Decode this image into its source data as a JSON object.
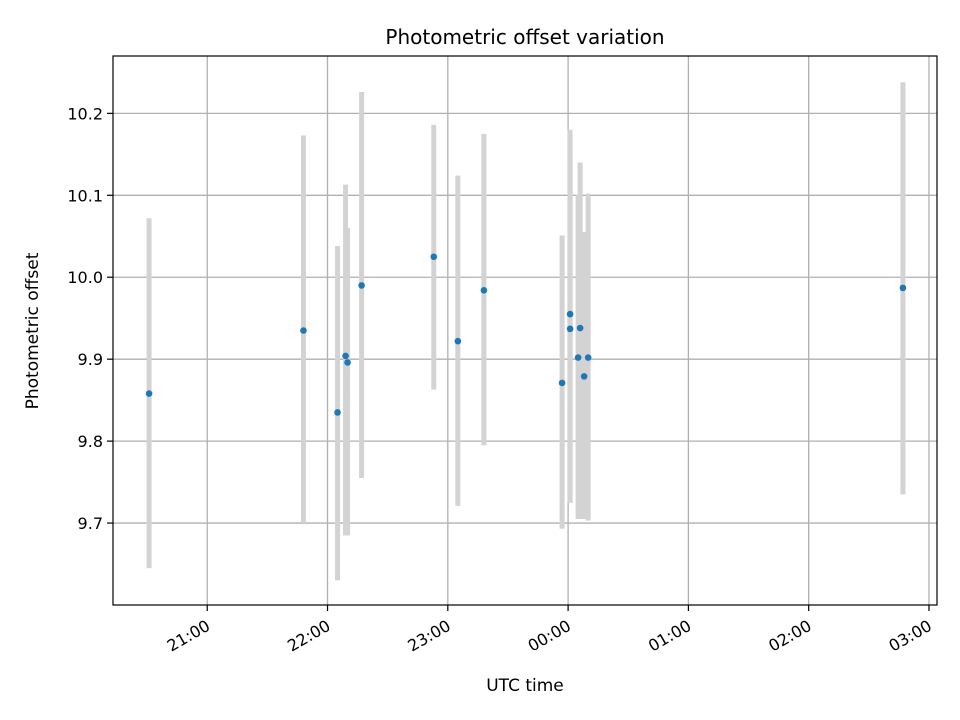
{
  "chart_data": {
    "type": "scatter",
    "title": "Photometric offset variation",
    "xlabel": "UTC time",
    "ylabel": "Photometric offset",
    "x_axis_kind": "time",
    "xlim": [
      "20:13",
      "03:04"
    ],
    "ylim": [
      9.6,
      10.27
    ],
    "grid": true,
    "x_ticks": [
      "21:00",
      "22:00",
      "23:00",
      "00:00",
      "01:00",
      "02:00",
      "03:00"
    ],
    "y_ticks": [
      9.7,
      9.8,
      9.9,
      10.0,
      10.1,
      10.2
    ],
    "marker_color": "#1f77b4",
    "errorbar_color": "#d3d3d3",
    "points": [
      {
        "time": "20:31",
        "y": 9.858,
        "ylow": 9.645,
        "yhigh": 10.072
      },
      {
        "time": "21:48",
        "y": 9.935,
        "ylow": 9.7,
        "yhigh": 10.173
      },
      {
        "time": "22:05",
        "y": 9.835,
        "ylow": 9.63,
        "yhigh": 10.038
      },
      {
        "time": "22:09",
        "y": 9.904,
        "ylow": 9.685,
        "yhigh": 10.113
      },
      {
        "time": "22:10",
        "y": 9.896,
        "ylow": 9.685,
        "yhigh": 10.06
      },
      {
        "time": "22:17",
        "y": 9.99,
        "ylow": 9.755,
        "yhigh": 10.226
      },
      {
        "time": "22:53",
        "y": 10.025,
        "ylow": 9.863,
        "yhigh": 10.186
      },
      {
        "time": "23:05",
        "y": 9.922,
        "ylow": 9.721,
        "yhigh": 10.124
      },
      {
        "time": "23:18",
        "y": 9.984,
        "ylow": 9.795,
        "yhigh": 10.175
      },
      {
        "time": "23:57",
        "y": 9.871,
        "ylow": 9.693,
        "yhigh": 10.051
      },
      {
        "time": "00:01",
        "y": 9.955,
        "ylow": 9.725,
        "yhigh": 10.18
      },
      {
        "time": "00:01",
        "y": 9.937,
        "ylow": 9.725,
        "yhigh": 10.148
      },
      {
        "time": "00:05",
        "y": 9.902,
        "ylow": 9.705,
        "yhigh": 10.101
      },
      {
        "time": "00:06",
        "y": 9.938,
        "ylow": 9.705,
        "yhigh": 10.14
      },
      {
        "time": "00:08",
        "y": 9.879,
        "ylow": 9.705,
        "yhigh": 10.055
      },
      {
        "time": "00:10",
        "y": 9.902,
        "ylow": 9.703,
        "yhigh": 10.102
      },
      {
        "time": "02:47",
        "y": 9.987,
        "ylow": 9.735,
        "yhigh": 10.238
      }
    ]
  }
}
